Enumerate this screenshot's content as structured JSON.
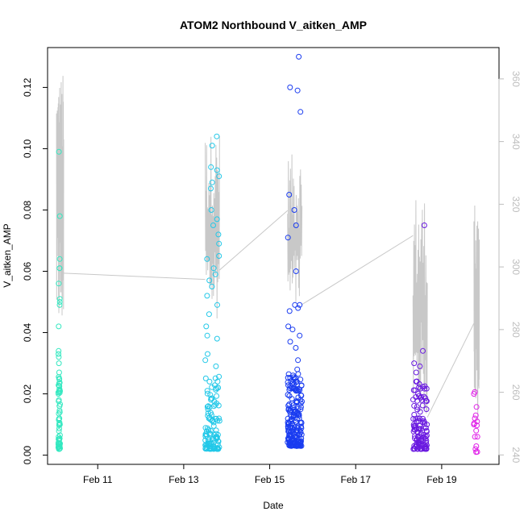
{
  "chart_data": {
    "type": "scatter",
    "title": "ATOM2 Northbound V_aitken_AMP",
    "xlabel": "Date",
    "ylabel": "V_aitken_AMP",
    "x_unit": "date",
    "xlim": [
      "2017-02-09 20:00",
      "2017-02-20 08:00"
    ],
    "ylim": [
      -0.003,
      0.133
    ],
    "y2lim": [
      237,
      370
    ],
    "x_ticks": [
      {
        "label": "Feb 11",
        "date": "2017-02-11"
      },
      {
        "label": "Feb 13",
        "date": "2017-02-13"
      },
      {
        "label": "Feb 15",
        "date": "2017-02-15"
      },
      {
        "label": "Feb 17",
        "date": "2017-02-17"
      },
      {
        "label": "Feb 19",
        "date": "2017-02-19"
      }
    ],
    "y_ticks": [
      "0.00",
      "0.02",
      "0.04",
      "0.06",
      "0.08",
      "0.10",
      "0.12"
    ],
    "y2_ticks": [
      "240",
      "260",
      "280",
      "300",
      "320",
      "340",
      "360"
    ],
    "grid": false,
    "legend": "none",
    "colors": {
      "cluster1": "#33e8c0",
      "cluster2": "#22c8e8",
      "cluster3": "#1a3cf0",
      "cluster4": "#6a1ae0",
      "cluster5": "#e020e8",
      "secondary_line": "#c8c8c8",
      "axis": "#000000",
      "axis2": "#bdbdbd"
    },
    "series": [
      {
        "type": "scatter",
        "color": "#33e8c0",
        "x": [
          "2017-02-10 02:00",
          "2017-02-10 03:00"
        ],
        "y_summary": {
          "min": 0.002,
          "max": 0.099,
          "n": 70
        },
        "notable_values": [
          0.099,
          0.078,
          0.064,
          0.061,
          0.061,
          0.056,
          0.051,
          0.05,
          0.049,
          0.042,
          0.034,
          0.033,
          0.032,
          0.03,
          0.027,
          0.025,
          0.02,
          0.018,
          0.012,
          0.01,
          0.006,
          0.004,
          0.003
        ]
      },
      {
        "type": "scatter",
        "color": "#22c8e8",
        "x": [
          "2017-02-13 12:00",
          "2017-02-13 20:00"
        ],
        "y_summary": {
          "min": 0.002,
          "max": 0.104,
          "n": 140
        },
        "notable_values": [
          0.104,
          0.101,
          0.094,
          0.093,
          0.091,
          0.089,
          0.087,
          0.08,
          0.077,
          0.075,
          0.072,
          0.069,
          0.065,
          0.064,
          0.061,
          0.059,
          0.057,
          0.055,
          0.052,
          0.049,
          0.046,
          0.042,
          0.039,
          0.038,
          0.033,
          0.031,
          0.029,
          0.024,
          0.022,
          0.016,
          0.012,
          0.008,
          0.005,
          0.003
        ]
      },
      {
        "type": "scatter",
        "color": "#1a3cf0",
        "x": [
          "2017-02-15 10:00",
          "2017-02-15 18:00"
        ],
        "y_summary": {
          "min": 0.003,
          "max": 0.13,
          "n": 210
        },
        "notable_values": [
          0.13,
          0.12,
          0.119,
          0.112,
          0.085,
          0.08,
          0.075,
          0.071,
          0.06,
          0.049,
          0.049,
          0.048,
          0.047,
          0.042,
          0.041,
          0.039,
          0.037,
          0.035,
          0.031,
          0.028,
          0.024,
          0.021,
          0.018,
          0.014,
          0.01,
          0.006,
          0.004
        ]
      },
      {
        "type": "scatter",
        "color": "#6a1ae0",
        "x": [
          "2017-02-18 08:00",
          "2017-02-18 16:00"
        ],
        "y_summary": {
          "min": 0.002,
          "max": 0.075,
          "n": 120
        },
        "notable_values": [
          0.075,
          0.034,
          0.03,
          0.029,
          0.027,
          0.024,
          0.024,
          0.02,
          0.018,
          0.015,
          0.012,
          0.01,
          0.008,
          0.006,
          0.004,
          0.003
        ]
      },
      {
        "type": "scatter",
        "color": "#e020e8",
        "x": [
          "2017-02-19 18:00",
          "2017-02-19 20:00"
        ],
        "y_summary": {
          "min": 0.001,
          "max": 0.02,
          "n": 16
        },
        "notable_values": [
          0.02,
          0.013,
          0.012,
          0.011,
          0.01,
          0.008,
          0.006,
          0.006,
          0.002,
          0.001
        ]
      },
      {
        "type": "line",
        "axis": "right",
        "color": "#c8c8c8",
        "segments": [
          {
            "x": [
              "2017-02-10 01:00",
              "2017-02-10 05:00"
            ],
            "y_min": 278,
            "y_max": 362
          },
          {
            "x": [
              "2017-02-13 12:00",
              "2017-02-13 20:00"
            ],
            "y_min": 283,
            "y_max": 343
          },
          {
            "x": [
              "2017-02-15 10:00",
              "2017-02-15 18:00"
            ],
            "y_min": 283,
            "y_max": 336
          },
          {
            "x": [
              "2017-02-18 08:00",
              "2017-02-18 16:00"
            ],
            "y_min": 250,
            "y_max": 324
          },
          {
            "x": [
              "2017-02-19 18:00",
              "2017-02-19 21:00"
            ],
            "y_min": 250,
            "y_max": 322
          }
        ],
        "connectors": [
          {
            "from": [
              "2017-02-10 05:00",
              298
            ],
            "to": [
              "2017-02-13 12:00",
              296
            ]
          },
          {
            "from": [
              "2017-02-13 20:00",
              299
            ],
            "to": [
              "2017-02-15 10:00",
              318
            ]
          },
          {
            "from": [
              "2017-02-15 18:00",
              288
            ],
            "to": [
              "2017-02-18 08:00",
              310
            ]
          },
          {
            "from": [
              "2017-02-18 16:00",
              252
            ],
            "to": [
              "2017-02-19 18:00",
              282
            ]
          }
        ]
      }
    ]
  }
}
